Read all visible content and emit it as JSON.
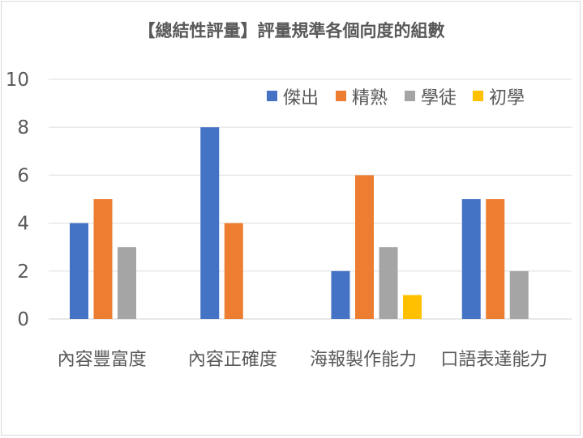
{
  "chart_data": {
    "type": "bar",
    "title": "【總結性評量】評量規準各個向度的組數",
    "xlabel": "",
    "ylabel": "",
    "categories": [
      "內容豐富度",
      "內容正確度",
      "海報製作能力",
      "口語表達能力"
    ],
    "series": [
      {
        "name": "傑出",
        "color": "#4472c4",
        "values": [
          4,
          8,
          2,
          5
        ]
      },
      {
        "name": "精熟",
        "color": "#ed7d31",
        "values": [
          5,
          4,
          6,
          5
        ]
      },
      {
        "name": "學徒",
        "color": "#a5a5a5",
        "values": [
          3,
          0,
          3,
          2
        ]
      },
      {
        "name": "初學",
        "color": "#ffc000",
        "values": [
          0,
          0,
          1,
          0
        ]
      }
    ],
    "ylim": [
      0,
      10
    ],
    "yticks": [
      "0",
      "2",
      "4",
      "6",
      "8",
      "10"
    ],
    "grid": true,
    "legend": "top-right"
  }
}
